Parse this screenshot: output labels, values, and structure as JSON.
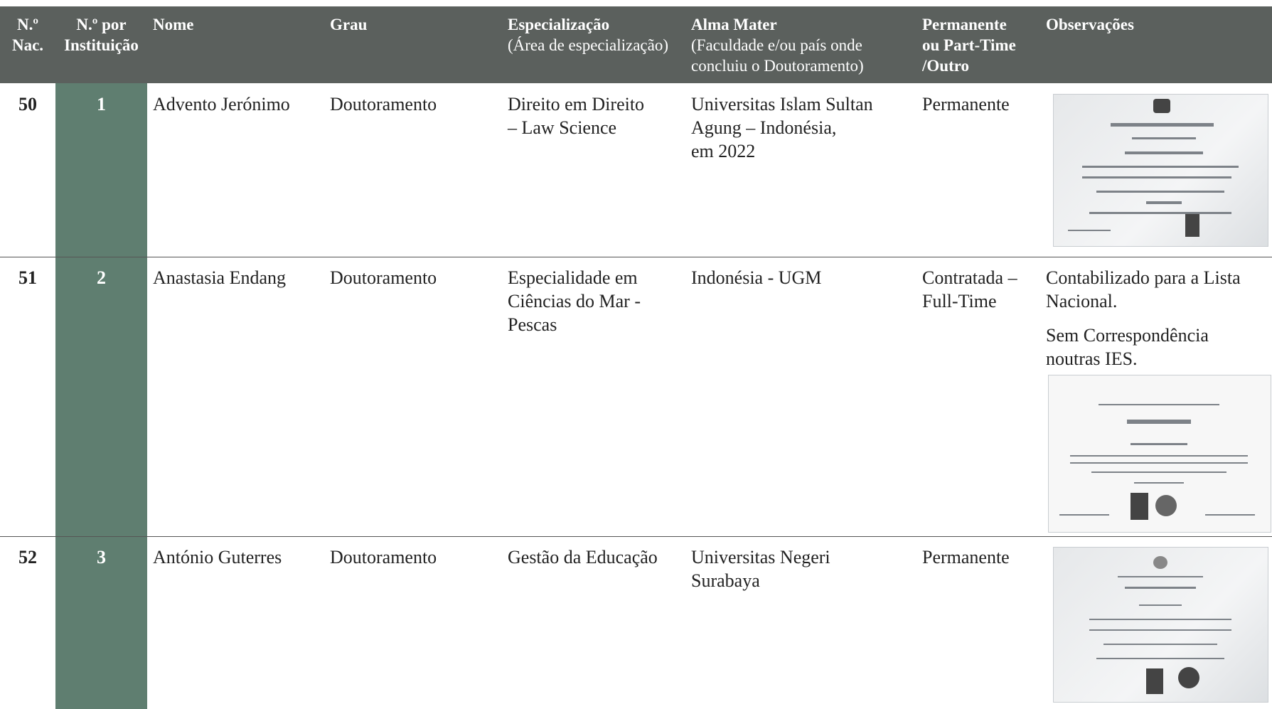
{
  "table": {
    "headers": [
      {
        "title": [
          "N.º",
          "Nac."
        ]
      },
      {
        "title": [
          "N.º por",
          "Instituição"
        ]
      },
      {
        "title": [
          "Nome"
        ]
      },
      {
        "title": [
          "Grau"
        ]
      },
      {
        "title": [
          "Especialização"
        ],
        "subtitle": [
          "(Área de especialização)"
        ]
      },
      {
        "title": [
          "Alma Mater"
        ],
        "subtitle": [
          "(Faculdade e/ou país onde",
          "concluiu o Doutoramento)"
        ]
      },
      {
        "title": [
          "Permanente",
          "ou Part-Time",
          "/Outro"
        ]
      },
      {
        "title": [
          "Observações"
        ]
      }
    ],
    "rows": [
      [
        "50",
        "1",
        [
          "Advento Jerónimo"
        ],
        [
          "Doutoramento"
        ],
        [
          "Direito em Direito",
          "– Law Science"
        ],
        [
          "Universitas Islam Sultan",
          "Agung – Indonésia,",
          "em 2022"
        ],
        [
          "Permanente"
        ],
        []
      ],
      [
        "51",
        "2",
        [
          "Anastasia Endang"
        ],
        [
          "Doutoramento"
        ],
        [
          "Especialidade em",
          "Ciências do Mar -",
          "Pescas"
        ],
        [
          "Indonésia - UGM"
        ],
        [
          "Contratada –",
          "Full-Time"
        ],
        [
          [
            "Contabilizado para a Lista",
            "Nacional."
          ],
          [
            "Sem Correspondência",
            "noutras IES."
          ]
        ]
      ],
      [
        "52",
        "3",
        [
          "António Guterres"
        ],
        [
          "Doutoramento"
        ],
        [
          "Gestão da Educação"
        ],
        [
          "Universitas Negeri",
          "Surabaya"
        ],
        [
          "Permanente"
        ],
        []
      ]
    ]
  }
}
